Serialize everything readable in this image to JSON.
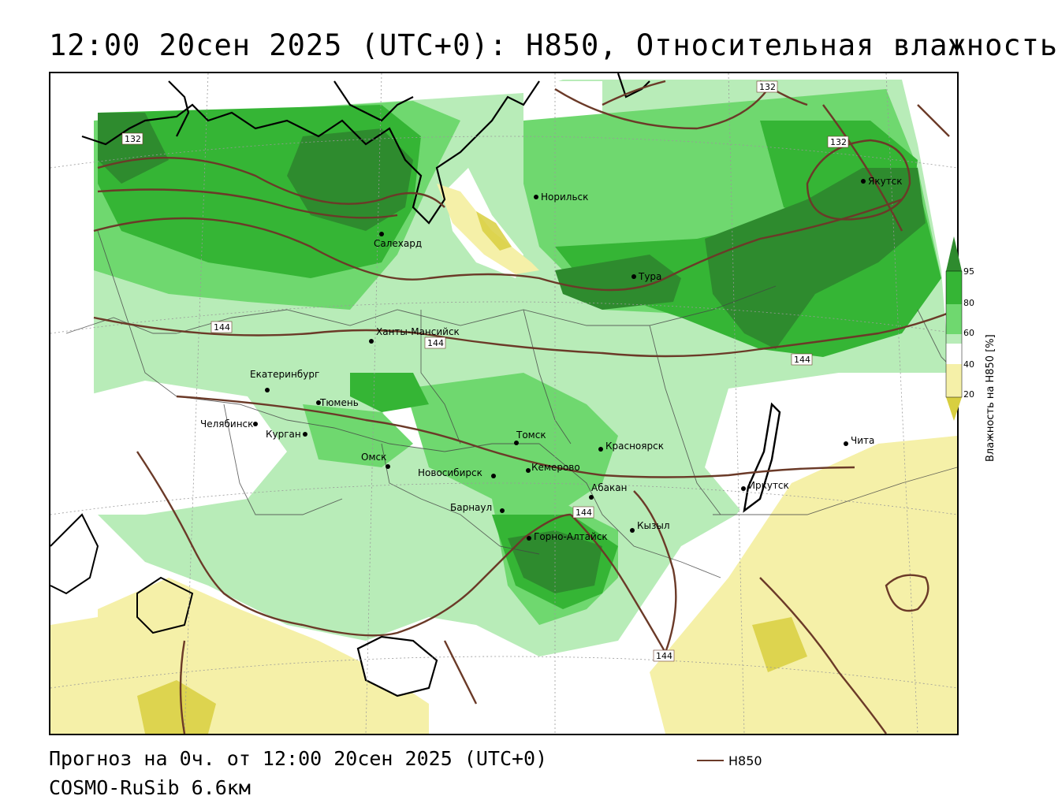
{
  "title": "12:00 20сен 2025 (UTC+0): H850, Относительная влажность",
  "footer": {
    "forecast": "Прогноз на 0ч. от 12:00 20сен 2025 (UTC+0)",
    "model": "COSMO-RuSib 6.6км"
  },
  "legend": {
    "line_label": "H850",
    "line_color": "#6b3a28"
  },
  "colorbar": {
    "title": "Влажность на H850 [%]",
    "ticks": [
      "95",
      "80",
      "60",
      "40",
      "20"
    ],
    "colors": {
      "above_95": "#2e8b2e",
      "80_95": "#35b535",
      "60_80": "#6fd86f",
      "50_60": "#b8ecb8",
      "40_50": "#ffffff",
      "20_40": "#f5f0a8",
      "below_20": "#d8cf40"
    }
  },
  "isolines": [
    {
      "label": "132"
    },
    {
      "label": "132"
    },
    {
      "label": "132"
    },
    {
      "label": "144"
    },
    {
      "label": "144"
    },
    {
      "label": "144"
    },
    {
      "label": "144"
    },
    {
      "label": "144"
    }
  ],
  "cities": [
    {
      "name": "Норильск"
    },
    {
      "name": "Якутск"
    },
    {
      "name": "Салехард"
    },
    {
      "name": "Тура"
    },
    {
      "name": "Ханты-Мансийск"
    },
    {
      "name": "Екатеринбург"
    },
    {
      "name": "Тюмень"
    },
    {
      "name": "Челябинск"
    },
    {
      "name": "Курган"
    },
    {
      "name": "Омск"
    },
    {
      "name": "Новосибирск"
    },
    {
      "name": "Томск"
    },
    {
      "name": "Кемерово"
    },
    {
      "name": "Красноярск"
    },
    {
      "name": "Абакан"
    },
    {
      "name": "Барнаул"
    },
    {
      "name": "Горно-Алтайск"
    },
    {
      "name": "Кызыл"
    },
    {
      "name": "Иркутск"
    },
    {
      "name": "Чита"
    }
  ]
}
